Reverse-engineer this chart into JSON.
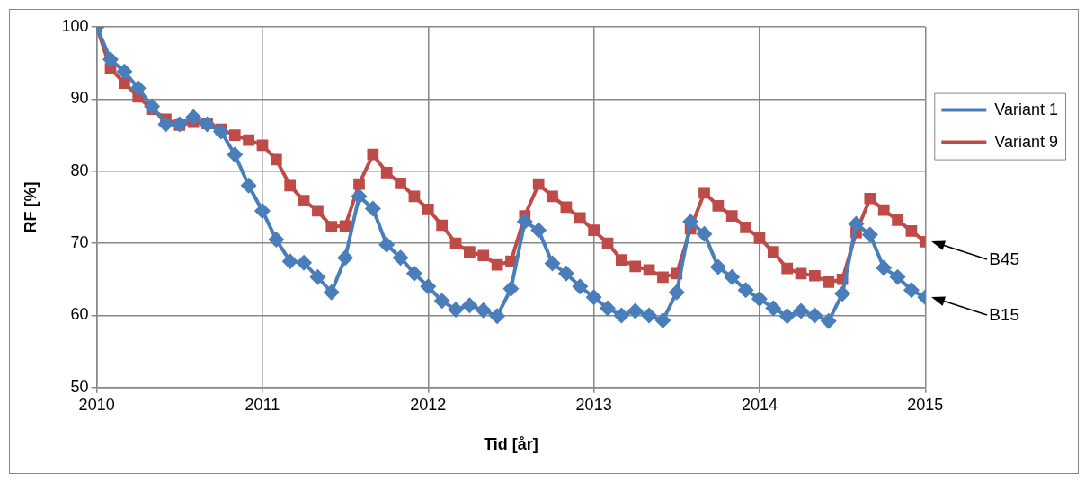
{
  "chart_data": {
    "type": "line",
    "xlabel": "Tid [år]",
    "ylabel": "RF [%]",
    "x": [
      "2010-01",
      "2010-02",
      "2010-03",
      "2010-04",
      "2010-05",
      "2010-06",
      "2010-07",
      "2010-08",
      "2010-09",
      "2010-10",
      "2010-11",
      "2010-12",
      "2011-01",
      "2011-02",
      "2011-03",
      "2011-04",
      "2011-05",
      "2011-06",
      "2011-07",
      "2011-08",
      "2011-09",
      "2011-10",
      "2011-11",
      "2011-12",
      "2012-01",
      "2012-02",
      "2012-03",
      "2012-04",
      "2012-05",
      "2012-06",
      "2012-07",
      "2012-08",
      "2012-09",
      "2012-10",
      "2012-11",
      "2012-12",
      "2013-01",
      "2013-02",
      "2013-03",
      "2013-04",
      "2013-05",
      "2013-06",
      "2013-07",
      "2013-08",
      "2013-09",
      "2013-10",
      "2013-11",
      "2013-12",
      "2014-01",
      "2014-02",
      "2014-03",
      "2014-04",
      "2014-05",
      "2014-06",
      "2014-07",
      "2014-08",
      "2014-09",
      "2014-10",
      "2014-11",
      "2014-12",
      "2015-01"
    ],
    "series": [
      {
        "name": "Variant 1",
        "color": "#4a7ebb",
        "marker": "diamond",
        "values": [
          100,
          95.5,
          93.8,
          91.5,
          89,
          86.5,
          86.5,
          87.5,
          86.5,
          85.5,
          82.3,
          78,
          74.5,
          70.5,
          67.5,
          67.3,
          65.3,
          63.2,
          68,
          76.5,
          74.8,
          69.8,
          68,
          65.8,
          64,
          62,
          60.8,
          61.4,
          60.7,
          59.9,
          63.7,
          73,
          71.8,
          67.2,
          65.8,
          64,
          62.5,
          61,
          60,
          60.6,
          60,
          59.3,
          63.2,
          73,
          71.3,
          66.7,
          65.3,
          63.5,
          62.3,
          61,
          59.9,
          60.6,
          60,
          59.2,
          63,
          72.7,
          71.2,
          66.6,
          65.3,
          63.5,
          62.5
        ]
      },
      {
        "name": "Variant 9",
        "color": "#be4b48",
        "marker": "square",
        "values": [
          100,
          94.2,
          92.2,
          90.3,
          88.6,
          87.2,
          86.4,
          86.8,
          86.6,
          85.8,
          85,
          84.3,
          83.6,
          81.6,
          78,
          75.9,
          74.5,
          72.3,
          72.4,
          78.2,
          82.3,
          79.8,
          78.3,
          76.5,
          74.7,
          72.5,
          70,
          68.8,
          68.3,
          67,
          67.5,
          73.8,
          78.2,
          76.5,
          75,
          73.5,
          71.8,
          70,
          67.7,
          66.8,
          66.3,
          65.3,
          65.8,
          72,
          77,
          75.2,
          73.8,
          72.2,
          70.7,
          68.8,
          66.5,
          65.8,
          65.5,
          64.6,
          65,
          71.5,
          76.2,
          74.6,
          73.2,
          71.7,
          70.2
        ]
      }
    ],
    "xlim": [
      "2010-01",
      "2015-01"
    ],
    "xticks": [
      {
        "value": "2010-01",
        "label": "2010"
      },
      {
        "value": "2011-01",
        "label": "2011"
      },
      {
        "value": "2012-01",
        "label": "2012"
      },
      {
        "value": "2013-01",
        "label": "2013"
      },
      {
        "value": "2014-01",
        "label": "2014"
      },
      {
        "value": "2015-01",
        "label": "2015"
      }
    ],
    "ylim": [
      50,
      100
    ],
    "yticks": [
      50,
      60,
      70,
      80,
      90,
      100
    ],
    "grid": true,
    "legend": "right",
    "line_style": "solid",
    "annotations": [
      "B45",
      "B15"
    ]
  }
}
